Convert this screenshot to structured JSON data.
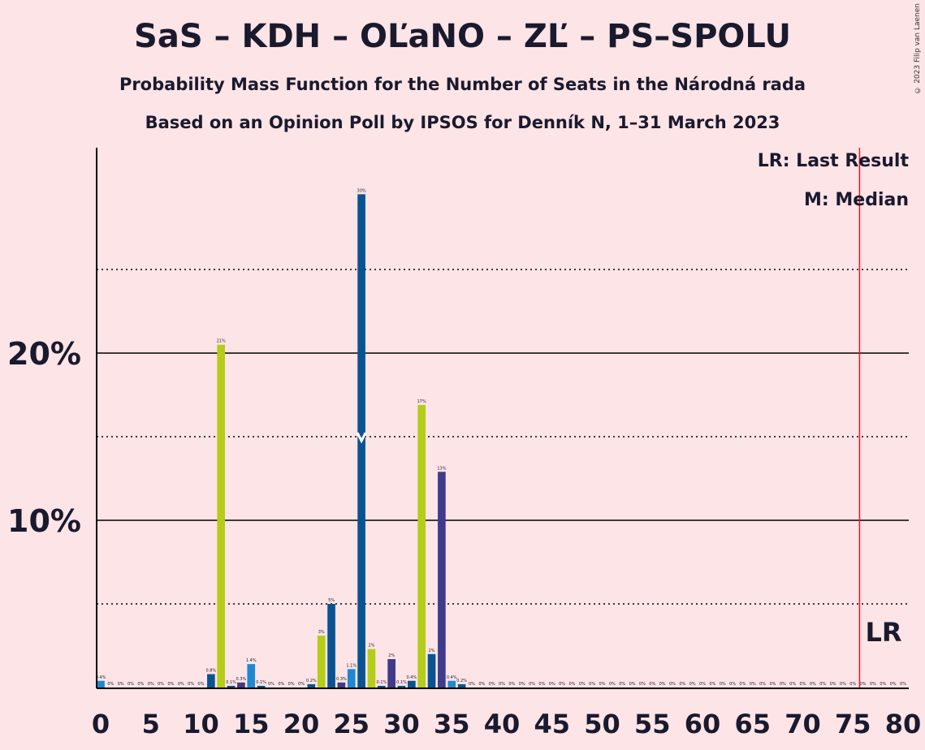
{
  "header": {
    "title": "SaS – KDH – OĽaNO – ZĽ – PS–SPOLU",
    "subtitle1": "Probability Mass Function for the Number of Seats in the Národná rada",
    "subtitle2": "Based on an Opinion Poll by IPSOS for Denník N, 1–31 March 2023",
    "copyright": "© 2023 Filip van Laenen"
  },
  "legend": {
    "lr": "LR: Last Result",
    "median": "M: Median",
    "lr_marker": "LR"
  },
  "colors": {
    "background": "#fde4e6",
    "sas": "#b5cc18",
    "kdh": "#0a5392",
    "olano": "#3f3a8a",
    "ps": "#1e88d3",
    "last_result_line": "#e8152a"
  },
  "chart_data": {
    "type": "bar",
    "title": "SaS – KDH – OĽaNO – ZĽ – PS–SPOLU",
    "xlabel": "",
    "ylabel": "",
    "xlim": [
      0,
      80
    ],
    "ylim": [
      0,
      32
    ],
    "x_ticks": [
      0,
      5,
      10,
      15,
      20,
      25,
      30,
      35,
      40,
      45,
      50,
      55,
      60,
      65,
      70,
      75,
      80
    ],
    "y_ticks_labeled": [
      "10%",
      "20%"
    ],
    "gridlines_solid": [
      10,
      20
    ],
    "gridlines_dotted": [
      5,
      15,
      25
    ],
    "median": 26,
    "last_result": 76,
    "bars": [
      {
        "x": 0,
        "value": 0.4,
        "label": "0.4%",
        "color": "ps"
      },
      {
        "x": 1,
        "value": 0,
        "label": "0%",
        "color": "kdh"
      },
      {
        "x": 2,
        "value": 0,
        "label": "0%",
        "color": "kdh"
      },
      {
        "x": 3,
        "value": 0,
        "label": "0%",
        "color": "kdh"
      },
      {
        "x": 4,
        "value": 0,
        "label": "0%",
        "color": "kdh"
      },
      {
        "x": 5,
        "value": 0,
        "label": "0%",
        "color": "kdh"
      },
      {
        "x": 6,
        "value": 0,
        "label": "0%",
        "color": "kdh"
      },
      {
        "x": 7,
        "value": 0,
        "label": "0%",
        "color": "kdh"
      },
      {
        "x": 8,
        "value": 0,
        "label": "0%",
        "color": "kdh"
      },
      {
        "x": 9,
        "value": 0,
        "label": "0%",
        "color": "kdh"
      },
      {
        "x": 10,
        "value": 0,
        "label": "0%",
        "color": "kdh"
      },
      {
        "x": 11,
        "value": 0.8,
        "label": "0.8%",
        "color": "kdh"
      },
      {
        "x": 12,
        "value": 20.5,
        "label": "21%",
        "color": "sas"
      },
      {
        "x": 13,
        "value": 0.1,
        "label": "0.1%",
        "color": "kdh"
      },
      {
        "x": 14,
        "value": 0.3,
        "label": "0.3%",
        "color": "olano"
      },
      {
        "x": 15,
        "value": 1.4,
        "label": "1.4%",
        "color": "ps"
      },
      {
        "x": 16,
        "value": 0.1,
        "label": "0.1%",
        "color": "kdh"
      },
      {
        "x": 17,
        "value": 0,
        "label": "0%",
        "color": "kdh"
      },
      {
        "x": 18,
        "value": 0,
        "label": "0%",
        "color": "kdh"
      },
      {
        "x": 19,
        "value": 0,
        "label": "0%",
        "color": "kdh"
      },
      {
        "x": 20,
        "value": 0,
        "label": "0%",
        "color": "kdh"
      },
      {
        "x": 21,
        "value": 0.2,
        "label": "0.2%",
        "color": "kdh"
      },
      {
        "x": 22,
        "value": 3.1,
        "label": "3%",
        "color": "sas"
      },
      {
        "x": 23,
        "value": 5.0,
        "label": "5%",
        "color": "kdh"
      },
      {
        "x": 24,
        "value": 0.3,
        "label": "0.3%",
        "color": "olano"
      },
      {
        "x": 25,
        "value": 1.1,
        "label": "1.1%",
        "color": "ps"
      },
      {
        "x": 26,
        "value": 29.5,
        "label": "30%",
        "color": "kdh"
      },
      {
        "x": 27,
        "value": 2.3,
        "label": "2%",
        "color": "sas"
      },
      {
        "x": 28,
        "value": 0.1,
        "label": "0.1%",
        "color": "kdh"
      },
      {
        "x": 29,
        "value": 1.7,
        "label": "2%",
        "color": "olano"
      },
      {
        "x": 30,
        "value": 0.1,
        "label": "0.1%",
        "color": "kdh"
      },
      {
        "x": 31,
        "value": 0.4,
        "label": "0.4%",
        "color": "kdh"
      },
      {
        "x": 32,
        "value": 16.9,
        "label": "17%",
        "color": "sas"
      },
      {
        "x": 33,
        "value": 2.0,
        "label": "2%",
        "color": "kdh"
      },
      {
        "x": 34,
        "value": 12.9,
        "label": "13%",
        "color": "olano"
      },
      {
        "x": 35,
        "value": 0.4,
        "label": "0.4%",
        "color": "ps"
      },
      {
        "x": 36,
        "value": 0.2,
        "label": "0.2%",
        "color": "kdh"
      },
      {
        "x": 37,
        "value": 0,
        "label": "0%",
        "color": "kdh"
      },
      {
        "x": 38,
        "value": 0,
        "label": "0%",
        "color": "kdh"
      },
      {
        "x": 39,
        "value": 0,
        "label": "0%",
        "color": "kdh"
      },
      {
        "x": 40,
        "value": 0,
        "label": "0%",
        "color": "kdh"
      },
      {
        "x": 41,
        "value": 0,
        "label": "0%",
        "color": "kdh"
      },
      {
        "x": 42,
        "value": 0,
        "label": "0%",
        "color": "kdh"
      },
      {
        "x": 43,
        "value": 0,
        "label": "0%",
        "color": "kdh"
      },
      {
        "x": 44,
        "value": 0,
        "label": "0%",
        "color": "kdh"
      },
      {
        "x": 45,
        "value": 0,
        "label": "0%",
        "color": "kdh"
      },
      {
        "x": 46,
        "value": 0,
        "label": "0%",
        "color": "kdh"
      },
      {
        "x": 47,
        "value": 0,
        "label": "0%",
        "color": "kdh"
      },
      {
        "x": 48,
        "value": 0,
        "label": "0%",
        "color": "kdh"
      },
      {
        "x": 49,
        "value": 0,
        "label": "0%",
        "color": "kdh"
      },
      {
        "x": 50,
        "value": 0,
        "label": "0%",
        "color": "kdh"
      },
      {
        "x": 51,
        "value": 0,
        "label": "0%",
        "color": "kdh"
      },
      {
        "x": 52,
        "value": 0,
        "label": "0%",
        "color": "kdh"
      },
      {
        "x": 53,
        "value": 0,
        "label": "0%",
        "color": "kdh"
      },
      {
        "x": 54,
        "value": 0,
        "label": "0%",
        "color": "kdh"
      },
      {
        "x": 55,
        "value": 0,
        "label": "0%",
        "color": "kdh"
      },
      {
        "x": 56,
        "value": 0,
        "label": "0%",
        "color": "kdh"
      },
      {
        "x": 57,
        "value": 0,
        "label": "0%",
        "color": "kdh"
      },
      {
        "x": 58,
        "value": 0,
        "label": "0%",
        "color": "kdh"
      },
      {
        "x": 59,
        "value": 0,
        "label": "0%",
        "color": "kdh"
      },
      {
        "x": 60,
        "value": 0,
        "label": "0%",
        "color": "kdh"
      },
      {
        "x": 61,
        "value": 0,
        "label": "0%",
        "color": "kdh"
      },
      {
        "x": 62,
        "value": 0,
        "label": "0%",
        "color": "kdh"
      },
      {
        "x": 63,
        "value": 0,
        "label": "0%",
        "color": "kdh"
      },
      {
        "x": 64,
        "value": 0,
        "label": "0%",
        "color": "kdh"
      },
      {
        "x": 65,
        "value": 0,
        "label": "0%",
        "color": "kdh"
      },
      {
        "x": 66,
        "value": 0,
        "label": "0%",
        "color": "kdh"
      },
      {
        "x": 67,
        "value": 0,
        "label": "0%",
        "color": "kdh"
      },
      {
        "x": 68,
        "value": 0,
        "label": "0%",
        "color": "kdh"
      },
      {
        "x": 69,
        "value": 0,
        "label": "0%",
        "color": "kdh"
      },
      {
        "x": 70,
        "value": 0,
        "label": "0%",
        "color": "kdh"
      },
      {
        "x": 71,
        "value": 0,
        "label": "0%",
        "color": "kdh"
      },
      {
        "x": 72,
        "value": 0,
        "label": "0%",
        "color": "kdh"
      },
      {
        "x": 73,
        "value": 0,
        "label": "0%",
        "color": "kdh"
      },
      {
        "x": 74,
        "value": 0,
        "label": "0%",
        "color": "kdh"
      },
      {
        "x": 75,
        "value": 0,
        "label": "0%",
        "color": "kdh"
      },
      {
        "x": 76,
        "value": 0,
        "label": "0%",
        "color": "kdh"
      },
      {
        "x": 77,
        "value": 0,
        "label": "0%",
        "color": "kdh"
      },
      {
        "x": 78,
        "value": 0,
        "label": "0%",
        "color": "kdh"
      },
      {
        "x": 79,
        "value": 0,
        "label": "0%",
        "color": "kdh"
      },
      {
        "x": 80,
        "value": 0,
        "label": "0%",
        "color": "kdh"
      }
    ]
  }
}
